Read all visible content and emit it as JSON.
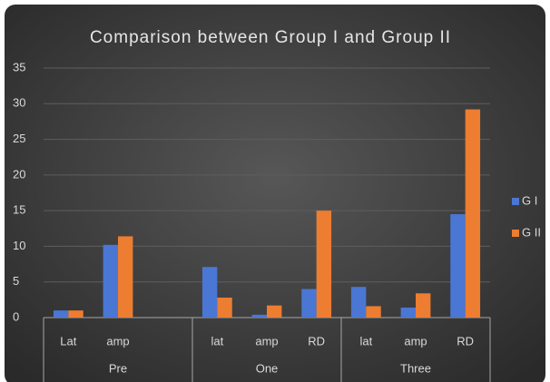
{
  "chart_data": {
    "type": "bar",
    "title": "Comparison between Group I and Group II",
    "groups": [
      {
        "name": "Pre",
        "categories": [
          "Lat",
          "amp",
          null
        ]
      },
      {
        "name": "One",
        "categories": [
          "lat",
          "amp",
          "RD"
        ]
      },
      {
        "name": "Three",
        "categories": [
          "lat",
          "amp",
          "RD"
        ]
      }
    ],
    "series": [
      {
        "name": "G I",
        "color": "#4a77d4",
        "values": [
          1,
          10.2,
          null,
          7.1,
          0.4,
          4,
          4.3,
          1.4,
          14.5
        ]
      },
      {
        "name": "G II",
        "color": "#ed7d31",
        "values": [
          1,
          11.4,
          null,
          2.8,
          1.7,
          15,
          1.6,
          3.4,
          29.2
        ]
      }
    ],
    "ylim": [
      0,
      35
    ],
    "yticks": [
      0,
      5,
      10,
      15,
      20,
      25,
      30,
      35
    ],
    "grid": true,
    "legend": "right"
  }
}
